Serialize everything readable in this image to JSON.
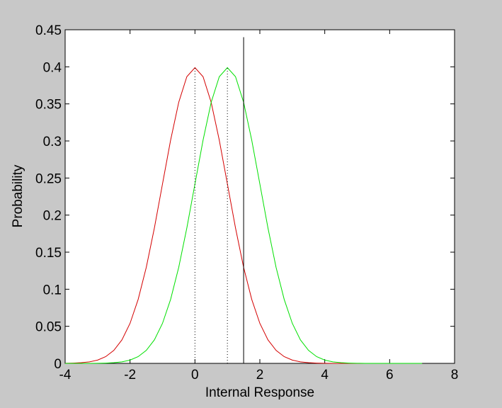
{
  "chart_data": {
    "type": "line",
    "xlabel": "Internal Response",
    "ylabel": "Probability",
    "x": [
      -4,
      -3.75,
      -3.5,
      -3.25,
      -3,
      -2.75,
      -2.5,
      -2.25,
      -2,
      -1.75,
      -1.5,
      -1.25,
      -1,
      -0.75,
      -0.5,
      -0.25,
      0,
      0.25,
      0.5,
      0.75,
      1,
      1.25,
      1.5,
      1.75,
      2,
      2.25,
      2.5,
      2.75,
      3,
      3.25,
      3.5,
      3.75,
      4,
      4.25,
      4.5,
      4.75,
      5,
      5.25,
      5.5,
      5.75,
      6,
      6.25,
      6.5,
      6.75,
      7
    ],
    "series": [
      {
        "color": "#d40000",
        "values": [
          0.0001,
          0.0004,
          0.0009,
          0.002,
          0.0044,
          0.0091,
          0.0175,
          0.0317,
          0.054,
          0.0863,
          0.1295,
          0.1826,
          0.242,
          0.3011,
          0.3521,
          0.3867,
          0.3989,
          0.3867,
          0.3521,
          0.3011,
          0.242,
          0.1826,
          0.1295,
          0.0863,
          0.054,
          0.0317,
          0.0175,
          0.0091,
          0.0044,
          0.002,
          0.0009,
          0.0004,
          0.0001,
          0,
          0,
          0,
          0,
          0,
          0,
          0,
          0,
          0,
          0,
          0,
          0
        ]
      },
      {
        "color": "#00e000",
        "values": [
          0,
          0,
          0,
          0,
          0.0001,
          0.0004,
          0.0009,
          0.002,
          0.0044,
          0.0091,
          0.0175,
          0.0317,
          0.054,
          0.0863,
          0.1295,
          0.1826,
          0.242,
          0.3011,
          0.3521,
          0.3867,
          0.3989,
          0.3867,
          0.3521,
          0.3011,
          0.242,
          0.1826,
          0.1295,
          0.0863,
          0.054,
          0.0317,
          0.0175,
          0.0091,
          0.0044,
          0.002,
          0.0009,
          0.0004,
          0.0001,
          0,
          0,
          0,
          0,
          0,
          0,
          0,
          0
        ]
      }
    ],
    "vlines": [
      {
        "x": 0,
        "top": 0.3989,
        "style": "dotted",
        "color": "#000000"
      },
      {
        "x": 1,
        "top": 0.3989,
        "style": "dotted",
        "color": "#000000"
      },
      {
        "x": 1.5,
        "top": 0.44,
        "style": "solid",
        "color": "#000000"
      }
    ],
    "xlim": [
      -4,
      8
    ],
    "xticks": [
      -4,
      -2,
      0,
      2,
      4,
      6,
      8
    ],
    "ylim": [
      0,
      0.45
    ],
    "yticks": [
      0,
      0.05,
      0.1,
      0.15,
      0.2,
      0.25,
      0.3,
      0.35,
      0.4,
      0.45
    ]
  }
}
